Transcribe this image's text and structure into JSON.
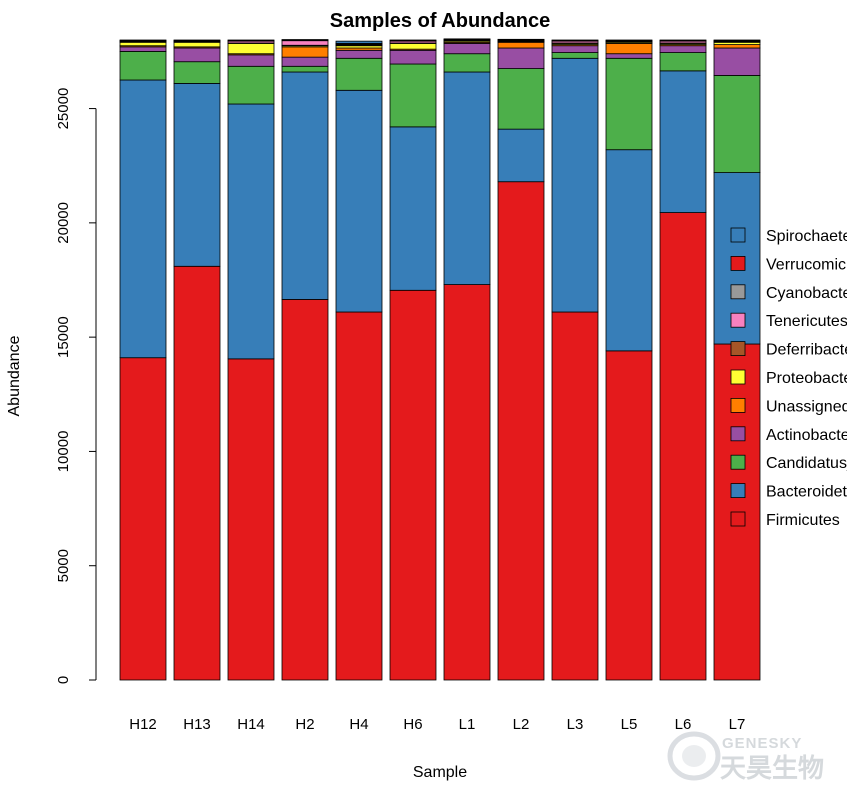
{
  "chart_data": {
    "type": "bar",
    "stacked": true,
    "title": "Samples of Abundance",
    "xlabel": "Sample",
    "ylabel": "Abundance",
    "ylim": [
      0,
      28000
    ],
    "yticks": [
      0,
      5000,
      10000,
      15000,
      20000,
      25000
    ],
    "categories": [
      "H12",
      "H13",
      "H14",
      "H2",
      "H4",
      "H6",
      "L1",
      "L2",
      "L3",
      "L5",
      "L6",
      "L7"
    ],
    "series": [
      {
        "name": "Firmicutes",
        "color": "#e41a1c",
        "values": [
          14100,
          18100,
          14050,
          16650,
          16100,
          17050,
          17300,
          21800,
          16100,
          14400,
          20450,
          14700
        ]
      },
      {
        "name": "Bacteroidetes",
        "color": "#377eb8",
        "values": [
          12150,
          8000,
          11150,
          9950,
          9700,
          7150,
          9300,
          2300,
          11100,
          8800,
          6200,
          7500
        ]
      },
      {
        "name": "Candidatus_Saccharibacteria",
        "color": "#4daf4a",
        "values": [
          1250,
          950,
          1650,
          250,
          1400,
          2750,
          800,
          2650,
          250,
          4000,
          800,
          4250
        ]
      },
      {
        "name": "Actinobacteria",
        "color": "#984ea3",
        "values": [
          200,
          600,
          500,
          400,
          350,
          600,
          450,
          900,
          300,
          200,
          300,
          1200
        ]
      },
      {
        "name": "Unassigned",
        "color": "#ff7f00",
        "values": [
          50,
          50,
          50,
          450,
          100,
          50,
          50,
          250,
          50,
          450,
          50,
          150
        ]
      },
      {
        "name": "Proteobacteria",
        "color": "#ffff33",
        "values": [
          150,
          200,
          450,
          50,
          100,
          250,
          50,
          30,
          50,
          50,
          50,
          100
        ]
      },
      {
        "name": "Deferribacteres",
        "color": "#a65628",
        "values": [
          20,
          20,
          20,
          20,
          20,
          20,
          20,
          20,
          20,
          20,
          20,
          20
        ]
      },
      {
        "name": "Tenericutes",
        "color": "#f781bf",
        "values": [
          30,
          30,
          80,
          200,
          30,
          80,
          30,
          30,
          80,
          30,
          80,
          30
        ]
      },
      {
        "name": "Cyanobacteria",
        "color": "#999999",
        "values": [
          30,
          30,
          30,
          30,
          30,
          30,
          30,
          30,
          30,
          30,
          30,
          30
        ]
      },
      {
        "name": "Verrucomicrobia",
        "color": "#e41a1c",
        "values": [
          20,
          20,
          20,
          20,
          20,
          20,
          20,
          20,
          20,
          20,
          20,
          20
        ]
      },
      {
        "name": "Spirochaetes",
        "color": "#377eb8",
        "values": [
          0,
          0,
          0,
          0,
          100,
          0,
          0,
          0,
          0,
          0,
          0,
          0
        ]
      }
    ],
    "legend": {
      "placement": "right",
      "entries": [
        {
          "label": "Spirochaetes",
          "color": "#377eb8"
        },
        {
          "label": "Verrucomicrobia",
          "color": "#e41a1c"
        },
        {
          "label": "Cyanobacteria",
          "color": "#999999"
        },
        {
          "label": "Tenericutes",
          "color": "#f781bf"
        },
        {
          "label": "Deferribacteres",
          "color": "#a65628"
        },
        {
          "label": "Proteobacteria",
          "color": "#ffff33"
        },
        {
          "label": "Unassigned",
          "color": "#ff7f00"
        },
        {
          "label": "Actinobacteria",
          "color": "#984ea3"
        },
        {
          "label": "Candidatus_Saccharibacteria",
          "color": "#4daf4a"
        },
        {
          "label": "Bacteroidetes",
          "color": "#377eb8"
        },
        {
          "label": "Firmicutes",
          "color": "#e41a1c"
        }
      ]
    },
    "grid": false
  },
  "watermark": {
    "text_en": "GENESKY",
    "text_cn": "天昊生物"
  }
}
